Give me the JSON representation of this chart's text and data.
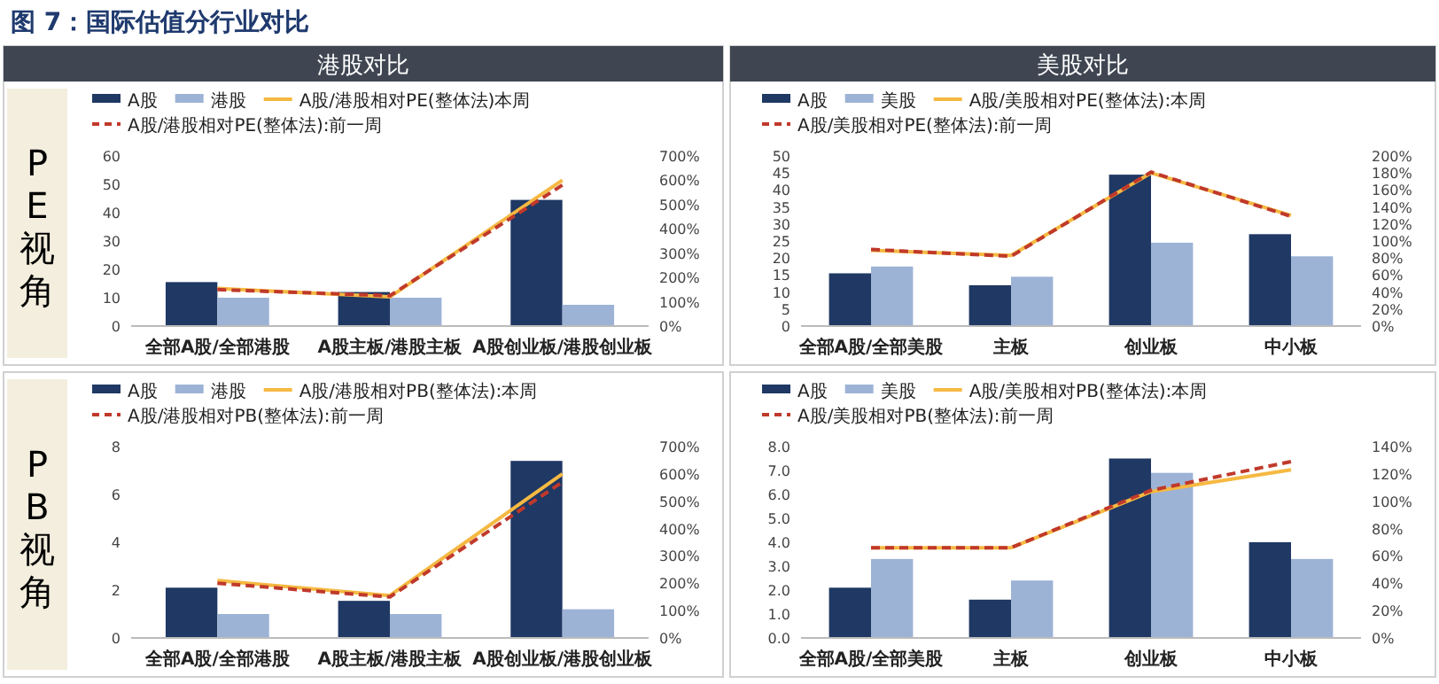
{
  "chart_data": [
    {
      "type": "bar",
      "title": "图 7：国际估值分行业对比",
      "subtitle": "港股对比",
      "ylabel": "PE视角",
      "categories": [
        "全部A股/全部港股",
        "A股主板/港股主板",
        "A股创业板/港股创业板"
      ],
      "legend": "top",
      "series": [
        {
          "name": "A股",
          "color": "#1f3864",
          "values": [
            15.5,
            12,
            44.5
          ]
        },
        {
          "name": "港股",
          "color": "#9db3d6",
          "values": [
            10,
            10,
            7.5
          ]
        },
        {
          "name": "A股/港股相对PE(整体法)本周",
          "type": "line",
          "axis": "y2",
          "line_style": "solid",
          "color": "#f5b942",
          "values": [
            155,
            120,
            600
          ]
        },
        {
          "name": "A股/港股相对PE(整体法):前一周",
          "type": "line",
          "axis": "y2",
          "line_style": "dashed",
          "color": "#c0392b",
          "values": [
            150,
            125,
            580
          ]
        }
      ],
      "ylim": [
        0,
        60
      ],
      "yticks": [
        0,
        10,
        20,
        30,
        40,
        50,
        60
      ],
      "y2lim": [
        0,
        700
      ],
      "y2ticks": [
        {
          "value": 0,
          "label": "0%"
        },
        {
          "value": 100,
          "label": "100%"
        },
        {
          "value": 200,
          "label": "200%"
        },
        {
          "value": 300,
          "label": "300%"
        },
        {
          "value": 400,
          "label": "400%"
        },
        {
          "value": 500,
          "label": "500%"
        },
        {
          "value": 600,
          "label": "600%"
        },
        {
          "value": 700,
          "label": "700%"
        }
      ]
    },
    {
      "type": "bar",
      "subtitle": "美股对比",
      "categories": [
        "全部A股/全部美股",
        "主板",
        "创业板",
        "中小板"
      ],
      "legend": "top",
      "series": [
        {
          "name": "A股",
          "color": "#1f3864",
          "values": [
            15.5,
            12,
            44.5,
            27
          ]
        },
        {
          "name": "美股",
          "color": "#9db3d6",
          "values": [
            17.5,
            14.5,
            24.5,
            20.5
          ]
        },
        {
          "name": "A股/美股相对PE(整体法):本周",
          "type": "line",
          "axis": "y2",
          "line_style": "solid",
          "color": "#f5b942",
          "values": [
            89,
            83,
            180,
            130
          ]
        },
        {
          "name": "A股/美股相对PE(整体法):前一周",
          "type": "line",
          "axis": "y2",
          "line_style": "dashed",
          "color": "#c0392b",
          "values": [
            90,
            82,
            181,
            129
          ]
        }
      ],
      "ylim": [
        0,
        50
      ],
      "yticks": [
        0,
        5,
        10,
        15,
        20,
        25,
        30,
        35,
        40,
        45,
        50
      ],
      "y2lim": [
        0,
        200
      ],
      "y2ticks": [
        {
          "value": 0,
          "label": "0%"
        },
        {
          "value": 20,
          "label": "20%"
        },
        {
          "value": 40,
          "label": "40%"
        },
        {
          "value": 60,
          "label": "60%"
        },
        {
          "value": 80,
          "label": "80%"
        },
        {
          "value": 100,
          "label": "100%"
        },
        {
          "value": 120,
          "label": "120%"
        },
        {
          "value": 140,
          "label": "140%"
        },
        {
          "value": 160,
          "label": "160%"
        },
        {
          "value": 180,
          "label": "180%"
        },
        {
          "value": 200,
          "label": "200%"
        }
      ]
    },
    {
      "type": "bar",
      "ylabel": "PB视角",
      "categories": [
        "全部A股/全部港股",
        "A股主板/港股主板",
        "A股创业板/港股创业板"
      ],
      "legend": "top",
      "series": [
        {
          "name": "A股",
          "color": "#1f3864",
          "values": [
            2.1,
            1.55,
            7.4
          ]
        },
        {
          "name": "港股",
          "color": "#9db3d6",
          "values": [
            1.0,
            1.0,
            1.2
          ]
        },
        {
          "name": "A股/港股相对PB(整体法):本周",
          "type": "line",
          "axis": "y2",
          "line_style": "solid",
          "color": "#f5b942",
          "values": [
            210,
            155,
            600
          ]
        },
        {
          "name": "A股/港股相对PB(整体法):前一周",
          "type": "line",
          "axis": "y2",
          "line_style": "dashed",
          "color": "#c0392b",
          "values": [
            200,
            150,
            570
          ]
        }
      ],
      "ylim": [
        0,
        8
      ],
      "yticks": [
        0,
        2,
        4,
        6,
        8
      ],
      "y2lim": [
        0,
        700
      ],
      "y2ticks": [
        {
          "value": 0,
          "label": "0%"
        },
        {
          "value": 100,
          "label": "100%"
        },
        {
          "value": 200,
          "label": "200%"
        },
        {
          "value": 300,
          "label": "300%"
        },
        {
          "value": 400,
          "label": "400%"
        },
        {
          "value": 500,
          "label": "500%"
        },
        {
          "value": 600,
          "label": "600%"
        },
        {
          "value": 700,
          "label": "700%"
        }
      ]
    },
    {
      "type": "bar",
      "categories": [
        "全部A股/全部美股",
        "主板",
        "创业板",
        "中小板"
      ],
      "legend": "top",
      "series": [
        {
          "name": "A股",
          "color": "#1f3864",
          "values": [
            2.1,
            1.6,
            7.5,
            4.0
          ]
        },
        {
          "name": "美股",
          "color": "#9db3d6",
          "values": [
            3.3,
            2.4,
            6.9,
            3.3
          ]
        },
        {
          "name": "A股/美股相对PB(整体法):本周",
          "type": "line",
          "axis": "y2",
          "line_style": "solid",
          "color": "#f5b942",
          "values": [
            66,
            66,
            107,
            123
          ]
        },
        {
          "name": "A股/美股相对PB(整体法):前一周",
          "type": "line",
          "axis": "y2",
          "line_style": "dashed",
          "color": "#c0392b",
          "values": [
            66,
            66,
            108,
            129
          ]
        }
      ],
      "ylim": [
        0,
        8
      ],
      "yticks": [
        {
          "value": 0,
          "label": "0.0"
        },
        {
          "value": 1,
          "label": "1.0"
        },
        {
          "value": 2,
          "label": "2.0"
        },
        {
          "value": 3,
          "label": "3.0"
        },
        {
          "value": 4,
          "label": "4.0"
        },
        {
          "value": 5,
          "label": "5.0"
        },
        {
          "value": 6,
          "label": "6.0"
        },
        {
          "value": 7,
          "label": "7.0"
        },
        {
          "value": 8,
          "label": "8.0"
        }
      ],
      "y2lim": [
        0,
        140
      ],
      "y2ticks": [
        {
          "value": 0,
          "label": "0%"
        },
        {
          "value": 20,
          "label": "20%"
        },
        {
          "value": 40,
          "label": "40%"
        },
        {
          "value": 60,
          "label": "60%"
        },
        {
          "value": 80,
          "label": "80%"
        },
        {
          "value": 100,
          "label": "100%"
        },
        {
          "value": 120,
          "label": "120%"
        },
        {
          "value": 140,
          "label": "140%"
        }
      ]
    }
  ]
}
